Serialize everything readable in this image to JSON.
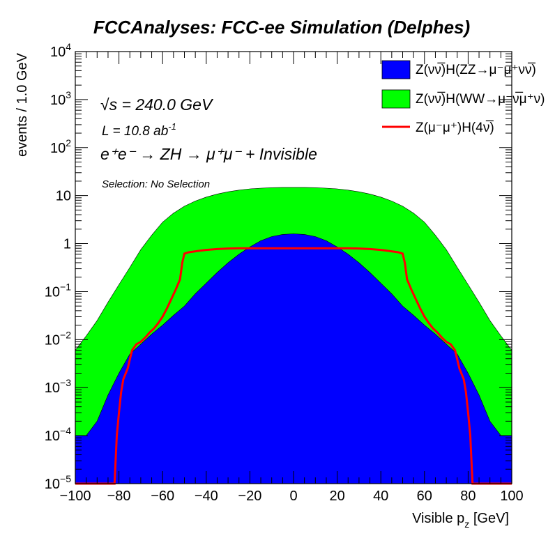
{
  "chart_data": {
    "type": "area",
    "title": "FCCAnalyses: FCC-ee Simulation (Delphes)",
    "xlabel_main": "Visible p",
    "xlabel_sub": "z",
    "xlabel_unit": " [GeV]",
    "ylabel": "events / 1.0 GeV",
    "xlim": [
      -100,
      100
    ],
    "ylim": [
      1e-05,
      10000
    ],
    "y_scale": "log",
    "x_ticks": [
      -100,
      -80,
      -60,
      -40,
      -20,
      0,
      20,
      40,
      60,
      80,
      100
    ],
    "x_tick_labels": [
      "−100",
      "−80",
      "−60",
      "−40",
      "−20",
      "0",
      "20",
      "40",
      "60",
      "80",
      "100"
    ],
    "y_ticks": [
      {
        "value": 1e-05,
        "base": "10",
        "exp": "−5"
      },
      {
        "value": 0.0001,
        "base": "10",
        "exp": "−4"
      },
      {
        "value": 0.001,
        "base": "10",
        "exp": "−3"
      },
      {
        "value": 0.01,
        "base": "10",
        "exp": "−2"
      },
      {
        "value": 0.1,
        "base": "10",
        "exp": "−1"
      },
      {
        "value": 1,
        "base": "1",
        "exp": ""
      },
      {
        "value": 10,
        "base": "10",
        "exp": ""
      },
      {
        "value": 100,
        "base": "10",
        "exp": "2"
      },
      {
        "value": 1000,
        "base": "10",
        "exp": "3"
      },
      {
        "value": 10000,
        "base": "10",
        "exp": "4"
      }
    ],
    "annotations": {
      "sqrt_s": "√s = 240.0 GeV",
      "lumi_prefix": "L = 10.8 ab",
      "lumi_exp": "-1",
      "process": "e⁺e⁻ → ZH → μ⁺μ⁻ + Invisible",
      "selection": "Selection: No Selection"
    },
    "legend_position": "top-right",
    "series": [
      {
        "name": "Z(νν̅)H(ZZ→μ⁻μ⁺νν̅)",
        "style": "filled",
        "color": "#0000ff",
        "x": [
          -100,
          -95,
          -90,
          -85,
          -80,
          -75,
          -70,
          -65,
          -60,
          -55,
          -50,
          -45,
          -40,
          -35,
          -30,
          -25,
          -20,
          -15,
          -10,
          -5,
          0,
          5,
          10,
          15,
          20,
          25,
          30,
          35,
          40,
          45,
          50,
          55,
          60,
          65,
          70,
          75,
          80,
          85,
          90,
          95,
          100
        ],
        "values": [
          0.0001,
          0.0001,
          0.0002,
          0.0007,
          0.002,
          0.005,
          0.008,
          0.013,
          0.02,
          0.032,
          0.05,
          0.09,
          0.15,
          0.25,
          0.4,
          0.6,
          0.85,
          1.15,
          1.4,
          1.55,
          1.6,
          1.55,
          1.4,
          1.15,
          0.85,
          0.6,
          0.4,
          0.25,
          0.15,
          0.09,
          0.05,
          0.032,
          0.02,
          0.013,
          0.008,
          0.005,
          0.002,
          0.0007,
          0.0002,
          0.0001,
          0.0001
        ]
      },
      {
        "name": "Z(νν̅)H(WW→μ⁻ν̅μ⁺ν)",
        "style": "filled",
        "color": "#00ff00",
        "x": [
          -100,
          -95,
          -90,
          -85,
          -80,
          -75,
          -70,
          -65,
          -60,
          -55,
          -50,
          -45,
          -40,
          -35,
          -30,
          -25,
          -20,
          -15,
          -10,
          -5,
          0,
          5,
          10,
          15,
          20,
          25,
          30,
          35,
          40,
          45,
          50,
          55,
          60,
          65,
          70,
          75,
          80,
          85,
          90,
          95,
          100
        ],
        "values": [
          0.006,
          0.012,
          0.025,
          0.06,
          0.14,
          0.32,
          0.75,
          1.5,
          2.8,
          4.3,
          6.0,
          7.7,
          9.3,
          10.8,
          12.0,
          13.0,
          13.8,
          14.3,
          14.6,
          14.8,
          14.8,
          14.8,
          14.6,
          14.3,
          13.8,
          13.0,
          12.0,
          10.8,
          9.3,
          7.7,
          6.0,
          4.3,
          2.8,
          1.5,
          0.75,
          0.32,
          0.14,
          0.06,
          0.025,
          0.012,
          0.006
        ]
      },
      {
        "name": "Z(μ⁻μ⁺)H(4ν̅)",
        "style": "line",
        "color": "#ff0000",
        "x": [
          -100,
          -82,
          -81,
          -80,
          -79,
          -78,
          -76,
          -74,
          -72,
          -70,
          -68,
          -66,
          -64,
          -62,
          -60,
          -58,
          -56,
          -54,
          -52,
          -51,
          -50,
          -48,
          -46,
          -44,
          -42,
          -40,
          -35,
          -30,
          -25,
          -20,
          -10,
          0,
          10,
          20,
          25,
          30,
          35,
          40,
          42,
          44,
          46,
          48,
          50,
          51,
          52,
          54,
          56,
          58,
          60,
          62,
          64,
          66,
          68,
          70,
          72,
          74,
          76,
          78,
          79,
          80,
          81,
          82,
          84,
          100
        ],
        "values": [
          1e-05,
          1e-05,
          0.0001,
          0.0003,
          0.0008,
          0.0015,
          0.0025,
          0.006,
          0.008,
          0.009,
          0.011,
          0.014,
          0.017,
          0.022,
          0.03,
          0.045,
          0.07,
          0.11,
          0.18,
          0.4,
          0.62,
          0.66,
          0.68,
          0.7,
          0.72,
          0.74,
          0.77,
          0.79,
          0.8,
          0.8,
          0.8,
          0.8,
          0.8,
          0.8,
          0.8,
          0.79,
          0.77,
          0.74,
          0.72,
          0.7,
          0.68,
          0.66,
          0.62,
          0.4,
          0.18,
          0.11,
          0.07,
          0.045,
          0.03,
          0.022,
          0.017,
          0.014,
          0.011,
          0.009,
          0.008,
          0.006,
          0.0025,
          0.0015,
          0.0008,
          0.0003,
          0.0001,
          1e-05,
          1e-05,
          1e-05
        ]
      }
    ]
  }
}
